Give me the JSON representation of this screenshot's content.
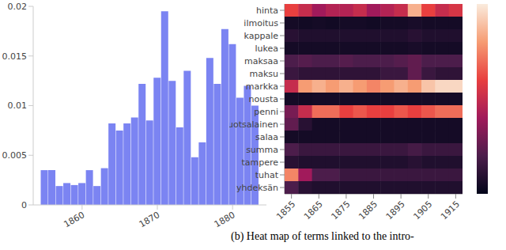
{
  "chart_data": [
    {
      "type": "bar",
      "x": [
        1855,
        1856,
        1857,
        1858,
        1859,
        1860,
        1861,
        1862,
        1863,
        1864,
        1865,
        1866,
        1867,
        1868,
        1869,
        1870,
        1871,
        1872,
        1873,
        1874,
        1875,
        1876,
        1877,
        1878,
        1879,
        1880,
        1881,
        1882,
        1883
      ],
      "values": [
        0.0035,
        0.0035,
        0.0019,
        0.0022,
        0.002,
        0.0022,
        0.0035,
        0.0019,
        0.0037,
        0.0082,
        0.0075,
        0.0082,
        0.0088,
        0.0122,
        0.0085,
        0.0128,
        0.0195,
        0.0125,
        0.0078,
        0.0135,
        0.0048,
        0.0063,
        0.0148,
        0.0122,
        0.0177,
        0.0162,
        0.0108,
        0.012,
        0.01
      ],
      "color": "#7b84f2",
      "xlim": [
        1853.5,
        1884.5
      ],
      "xticks": [
        1860,
        1870,
        1880
      ],
      "ylim": [
        0,
        0.02
      ],
      "yticks": [
        0,
        0.005,
        0.01,
        0.015,
        0.02
      ],
      "grid": false
    },
    {
      "type": "heatmap",
      "caption": "(b) Heat map of terms linked to the intro-",
      "x": [
        1855,
        1860,
        1865,
        1870,
        1875,
        1880,
        1885,
        1890,
        1895,
        1900,
        1905,
        1910,
        1915
      ],
      "categories": [
        "hinta",
        "ilmoitus",
        "kappale",
        "lukea",
        "maksaa",
        "maksu",
        "markka",
        "nousta",
        "penni",
        "ruotsalainen",
        "salaa",
        "summa",
        "tampere",
        "tuhat",
        "yhdeksän"
      ],
      "cells": [
        [
          0.6,
          0.5,
          0.4,
          0.45,
          0.45,
          0.5,
          0.4,
          0.45,
          0.5,
          0.85,
          0.6,
          0.5,
          0.55
        ],
        [
          0.05,
          0.04,
          0.05,
          0.04,
          0.05,
          0.05,
          0.04,
          0.05,
          0.05,
          0.06,
          0.05,
          0.05,
          0.05
        ],
        [
          0.1,
          0.08,
          0.08,
          0.08,
          0.08,
          0.08,
          0.08,
          0.08,
          0.08,
          0.1,
          0.08,
          0.08,
          0.08
        ],
        [
          0.05,
          0.05,
          0.05,
          0.05,
          0.05,
          0.05,
          0.05,
          0.05,
          0.05,
          0.06,
          0.05,
          0.05,
          0.05
        ],
        [
          0.2,
          0.22,
          0.2,
          0.2,
          0.22,
          0.2,
          0.2,
          0.2,
          0.22,
          0.25,
          0.2,
          0.2,
          0.2
        ],
        [
          0.15,
          0.12,
          0.12,
          0.12,
          0.12,
          0.12,
          0.12,
          0.15,
          0.15,
          0.25,
          0.15,
          0.12,
          0.12
        ],
        [
          0.5,
          0.8,
          0.85,
          0.8,
          0.85,
          0.8,
          0.75,
          0.8,
          0.85,
          0.8,
          0.9,
          0.95,
          0.95
        ],
        [
          0.05,
          0.04,
          0.05,
          0.05,
          0.05,
          0.05,
          0.05,
          0.05,
          0.05,
          0.05,
          0.05,
          0.05,
          0.05
        ],
        [
          0.3,
          0.5,
          0.7,
          0.7,
          0.6,
          0.65,
          0.6,
          0.6,
          0.65,
          0.6,
          0.65,
          0.7,
          0.7
        ],
        [
          0.25,
          0.1,
          0.05,
          0.05,
          0.05,
          0.05,
          0.05,
          0.05,
          0.05,
          0.05,
          0.05,
          0.05,
          0.05
        ],
        [
          0.05,
          0.05,
          0.05,
          0.05,
          0.05,
          0.05,
          0.05,
          0.05,
          0.05,
          0.05,
          0.05,
          0.05,
          0.05
        ],
        [
          0.2,
          0.15,
          0.15,
          0.15,
          0.15,
          0.15,
          0.15,
          0.15,
          0.15,
          0.18,
          0.15,
          0.15,
          0.15
        ],
        [
          0.1,
          0.08,
          0.08,
          0.08,
          0.08,
          0.08,
          0.08,
          0.08,
          0.08,
          0.1,
          0.08,
          0.08,
          0.08
        ],
        [
          0.75,
          0.4,
          0.2,
          0.2,
          0.15,
          0.15,
          0.15,
          0.15,
          0.15,
          0.15,
          0.15,
          0.15,
          0.15
        ],
        [
          0.2,
          0.1,
          0.08,
          0.08,
          0.08,
          0.08,
          0.08,
          0.08,
          0.08,
          0.08,
          0.08,
          0.08,
          0.08
        ]
      ],
      "xlim": [
        1852.5,
        1917.5
      ],
      "xticks": [
        1855,
        1865,
        1875,
        1885,
        1895,
        1905,
        1915
      ],
      "zlim": [
        0,
        1
      ]
    }
  ]
}
